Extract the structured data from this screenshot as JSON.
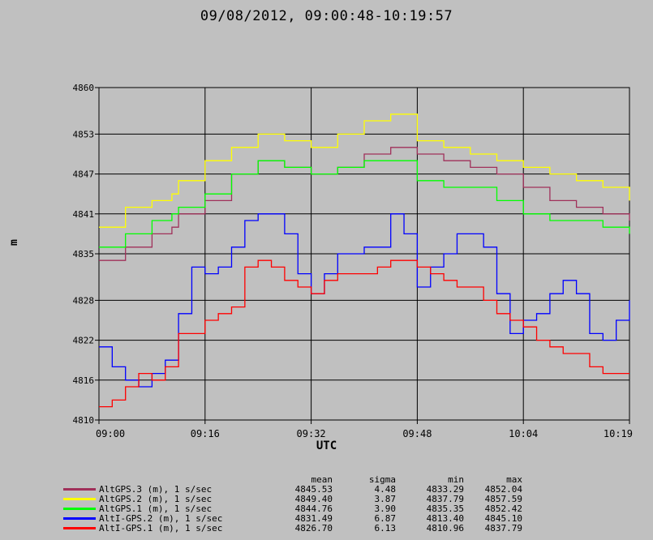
{
  "title": "09/08/2012, 09:00:48-10:19:57",
  "chart_data": {
    "type": "line",
    "title": "09/08/2012, 09:00:48-10:19:57",
    "xlabel": "UTC",
    "ylabel": "m",
    "x_ticks": [
      "09:00",
      "09:16",
      "09:32",
      "09:48",
      "10:04",
      "10:19"
    ],
    "y_ticks": [
      4810,
      4816,
      4822,
      4828,
      4835,
      4841,
      4847,
      4853,
      4860
    ],
    "xlim_minutes": [
      0,
      80
    ],
    "ylim": [
      4810,
      4860
    ],
    "grid": true,
    "x_unit": "minutes after 09:00",
    "series": [
      {
        "name": "AltGPS.3 (m), 1 s/sec",
        "color": "#a0305a",
        "x": [
          0,
          4,
          8,
          11,
          12,
          16,
          20,
          24,
          28,
          32,
          36,
          40,
          44,
          48,
          52,
          56,
          60,
          64,
          68,
          72,
          76,
          80
        ],
        "values": [
          4834,
          4836,
          4838,
          4839,
          4841,
          4843,
          4847,
          4849,
          4848,
          4847,
          4848,
          4850,
          4851,
          4850,
          4849,
          4848,
          4847,
          4845,
          4843,
          4842,
          4841,
          4840
        ]
      },
      {
        "name": "AltGPS.2 (m), 1 s/sec",
        "color": "#ffff00",
        "x": [
          0,
          4,
          8,
          11,
          12,
          16,
          20,
          24,
          28,
          32,
          36,
          40,
          44,
          48,
          52,
          56,
          60,
          64,
          68,
          72,
          76,
          80
        ],
        "values": [
          4839,
          4842,
          4843,
          4844,
          4846,
          4849,
          4851,
          4853,
          4852,
          4851,
          4853,
          4855,
          4856,
          4852,
          4851,
          4850,
          4849,
          4848,
          4847,
          4846,
          4845,
          4843
        ]
      },
      {
        "name": "AltGPS.1 (m), 1 s/sec",
        "color": "#00ff00",
        "x": [
          0,
          4,
          8,
          11,
          12,
          16,
          20,
          24,
          28,
          32,
          36,
          40,
          44,
          48,
          52,
          56,
          60,
          64,
          68,
          72,
          76,
          80
        ],
        "values": [
          4836,
          4838,
          4840,
          4841,
          4842,
          4844,
          4847,
          4849,
          4848,
          4847,
          4848,
          4849,
          4849,
          4846,
          4845,
          4845,
          4843,
          4841,
          4840,
          4840,
          4839,
          4838
        ]
      },
      {
        "name": "AltI-GPS.2 (m), 1 s/sec",
        "color": "#0000ff",
        "x": [
          0,
          2,
          4,
          6,
          8,
          10,
          12,
          14,
          16,
          18,
          20,
          22,
          24,
          26,
          28,
          30,
          32,
          34,
          36,
          38,
          40,
          42,
          44,
          46,
          48,
          50,
          52,
          54,
          56,
          58,
          60,
          62,
          64,
          66,
          68,
          70,
          72,
          74,
          76,
          78,
          80
        ],
        "values": [
          4821,
          4818,
          4816,
          4815,
          4817,
          4819,
          4826,
          4833,
          4832,
          4833,
          4836,
          4840,
          4841,
          4841,
          4838,
          4832,
          4829,
          4832,
          4835,
          4835,
          4836,
          4836,
          4841,
          4838,
          4830,
          4833,
          4835,
          4838,
          4838,
          4836,
          4829,
          4823,
          4825,
          4826,
          4829,
          4831,
          4829,
          4823,
          4822,
          4825,
          4828
        ]
      },
      {
        "name": "AltI-GPS.1 (m), 1 s/sec",
        "color": "#ff0000",
        "x": [
          0,
          2,
          4,
          6,
          8,
          10,
          12,
          14,
          16,
          18,
          20,
          22,
          24,
          26,
          28,
          30,
          32,
          34,
          36,
          38,
          40,
          42,
          44,
          46,
          48,
          50,
          52,
          54,
          56,
          58,
          60,
          62,
          64,
          66,
          68,
          70,
          72,
          74,
          76,
          78,
          80
        ],
        "values": [
          4812,
          4813,
          4815,
          4817,
          4816,
          4818,
          4823,
          4823,
          4825,
          4826,
          4827,
          4833,
          4834,
          4833,
          4831,
          4830,
          4829,
          4831,
          4832,
          4832,
          4832,
          4833,
          4834,
          4834,
          4833,
          4832,
          4831,
          4830,
          4830,
          4828,
          4826,
          4825,
          4824,
          4822,
          4821,
          4820,
          4820,
          4818,
          4817,
          4817,
          4817
        ]
      }
    ]
  },
  "stats": {
    "headers": [
      "mean",
      "sigma",
      "min",
      "max"
    ],
    "rows": [
      {
        "name": "AltGPS.3 (m), 1 s/sec",
        "color": "#a0305a",
        "mean": "4845.53",
        "sigma": "4.48",
        "min": "4833.29",
        "max": "4852.04"
      },
      {
        "name": "AltGPS.2 (m), 1 s/sec",
        "color": "#ffff00",
        "mean": "4849.40",
        "sigma": "3.87",
        "min": "4837.79",
        "max": "4857.59"
      },
      {
        "name": "AltGPS.1 (m), 1 s/sec",
        "color": "#00ff00",
        "mean": "4844.76",
        "sigma": "3.90",
        "min": "4835.35",
        "max": "4852.42"
      },
      {
        "name": "AltI-GPS.2 (m), 1 s/sec",
        "color": "#0000ff",
        "mean": "4831.49",
        "sigma": "6.87",
        "min": "4813.40",
        "max": "4845.10"
      },
      {
        "name": "AltI-GPS.1 (m), 1 s/sec",
        "color": "#ff0000",
        "mean": "4826.70",
        "sigma": "6.13",
        "min": "4810.96",
        "max": "4837.79"
      }
    ]
  }
}
